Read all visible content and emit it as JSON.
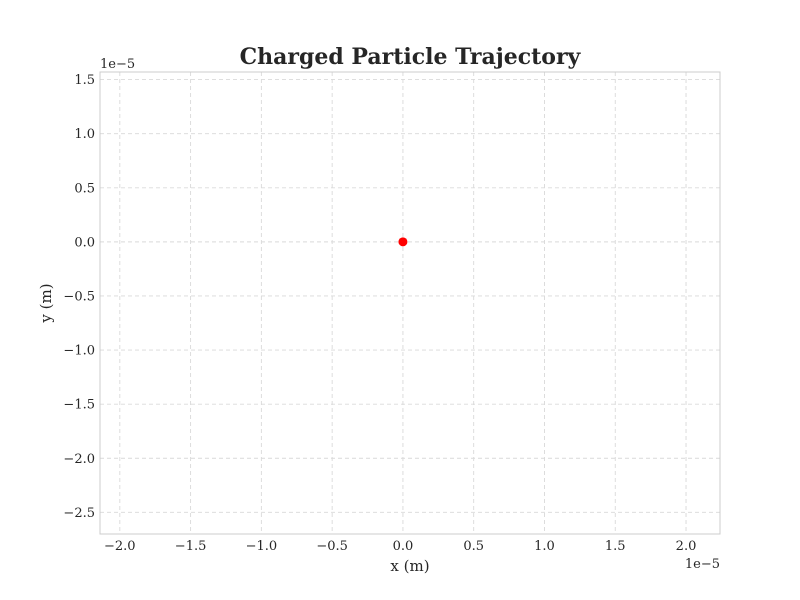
{
  "chart_data": {
    "type": "scatter",
    "title": "Charged Particle Trajectory",
    "xlabel": "x (m)",
    "ylabel": "y (m)",
    "x_offset_label": "1e−5",
    "y_offset_label": "1e−5",
    "xlim": [
      -2.14,
      2.24
    ],
    "ylim": [
      -2.7,
      1.57
    ],
    "x_ticks": [
      -2.0,
      -1.5,
      -1.0,
      -0.5,
      0.0,
      0.5,
      1.0,
      1.5,
      2.0
    ],
    "x_tick_labels": [
      "−2.0",
      "−1.5",
      "−1.0",
      "−0.5",
      "0.0",
      "0.5",
      "1.0",
      "1.5",
      "2.0"
    ],
    "y_ticks": [
      1.5,
      1.0,
      0.5,
      0.0,
      -0.5,
      -1.0,
      -1.5,
      -2.0,
      -2.5
    ],
    "y_tick_labels": [
      "1.5",
      "1.0",
      "0.5",
      "0.0",
      "−0.5",
      "−1.0",
      "−1.5",
      "−2.0",
      "−2.5"
    ],
    "grid": true,
    "series": [
      {
        "x": [
          0.0
        ],
        "y": [
          0.0
        ],
        "color": "#ff0000"
      }
    ]
  }
}
